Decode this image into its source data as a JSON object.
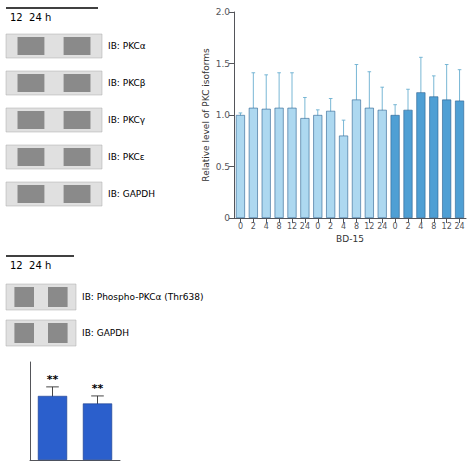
{
  "chart_data": [
    {
      "type": "blot",
      "title": "12  24 h",
      "annotations": [
        "IB: PKCα",
        "IB: PKCβ",
        "IB: PKCγ",
        "IB: PKCε",
        "IB: GAPDH"
      ]
    },
    {
      "type": "bar",
      "categories": [
        "0",
        "2",
        "4",
        "8",
        "12",
        "24",
        "0",
        "2",
        "4",
        "8",
        "12",
        "24",
        "0",
        "2",
        "4",
        "8",
        "12",
        "24"
      ],
      "values": [
        1.0,
        1.07,
        1.06,
        1.07,
        1.07,
        0.97,
        1.0,
        1.04,
        0.8,
        1.15,
        1.07,
        1.05,
        1.0,
        1.05,
        1.22,
        1.18,
        1.15,
        1.14
      ],
      "errors": [
        0.02,
        0.34,
        0.33,
        0.34,
        0.34,
        0.2,
        0.05,
        0.12,
        0.15,
        0.34,
        0.35,
        0.22,
        0.1,
        0.2,
        0.34,
        0.2,
        0.34,
        0.3
      ],
      "colors": [
        "#add8f0",
        "#add8f0",
        "#add8f0",
        "#add8f0",
        "#add8f0",
        "#add8f0",
        "#add8f0",
        "#add8f0",
        "#add8f0",
        "#add8f0",
        "#add8f0",
        "#add8f0",
        "#4f9fd4",
        "#4f9fd4",
        "#4f9fd4",
        "#4f9fd4",
        "#4f9fd4",
        "#4f9fd4"
      ],
      "xlabel": "BD-15",
      "ylabel": "Relative level of PKC isoforms",
      "ylim": [
        0,
        2.0
      ],
      "yticks": [
        0,
        0.5,
        {
          "value": 1.0,
          "label": "1.0"
        },
        1.5,
        {
          "value": 2.0,
          "label": "2.0"
        }
      ],
      "grid": false
    },
    {
      "type": "blot",
      "title": "12  24 h",
      "annotations": [
        "IB: Phospho-PKCα (Thr638)",
        "IB: GAPDH"
      ]
    },
    {
      "type": "bar",
      "categories": [
        null,
        null
      ],
      "values": [
        0.85,
        0.75
      ],
      "errors": [
        0.12,
        0.1
      ],
      "color": "#2b5fcc",
      "ylim": [
        0,
        1.3
      ],
      "tick_labels": false,
      "annotations": [
        "**",
        "**"
      ],
      "grid": false
    }
  ]
}
